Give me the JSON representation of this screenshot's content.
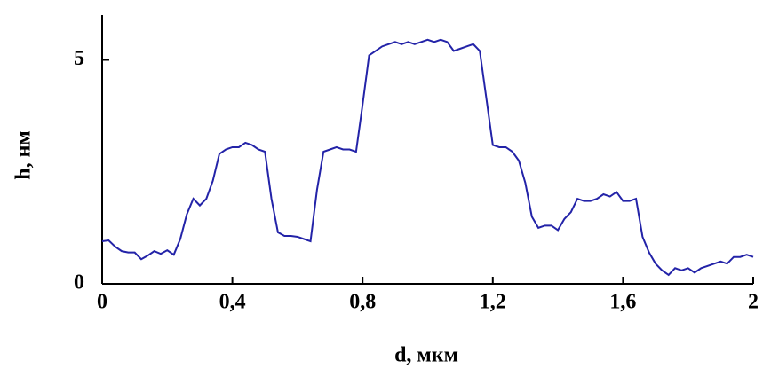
{
  "chart_data": {
    "type": "line",
    "xlabel": "d, мкм",
    "ylabel": "h, нм",
    "xlim": [
      0,
      2
    ],
    "ylim": [
      0,
      6
    ],
    "xticks": [
      0,
      {
        "value": 0.4,
        "label": "0,4"
      },
      {
        "value": 0.8,
        "label": "0,8"
      },
      {
        "value": 1.2,
        "label": "1,2"
      },
      {
        "value": 1.6,
        "label": "1,6"
      },
      2
    ],
    "yticks": [
      0,
      5
    ],
    "series": [
      {
        "color": "#2323a8",
        "x": [
          0,
          0.02,
          0.04,
          0.06,
          0.08,
          0.1,
          0.12,
          0.14,
          0.16,
          0.18,
          0.2,
          0.22,
          0.24,
          0.26,
          0.28,
          0.3,
          0.32,
          0.34,
          0.36,
          0.38,
          0.4,
          0.42,
          0.44,
          0.46,
          0.48,
          0.5,
          0.52,
          0.54,
          0.56,
          0.58,
          0.6,
          0.62,
          0.64,
          0.66,
          0.68,
          0.7,
          0.72,
          0.74,
          0.76,
          0.78,
          0.8,
          0.82,
          0.84,
          0.86,
          0.88,
          0.9,
          0.92,
          0.94,
          0.96,
          0.98,
          1.0,
          1.02,
          1.04,
          1.06,
          1.08,
          1.1,
          1.12,
          1.14,
          1.16,
          1.18,
          1.2,
          1.22,
          1.24,
          1.26,
          1.28,
          1.3,
          1.32,
          1.34,
          1.36,
          1.38,
          1.4,
          1.42,
          1.44,
          1.46,
          1.48,
          1.5,
          1.52,
          1.54,
          1.56,
          1.58,
          1.6,
          1.62,
          1.64,
          1.66,
          1.68,
          1.7,
          1.72,
          1.74,
          1.76,
          1.78,
          1.8,
          1.82,
          1.84,
          1.86,
          1.88,
          1.9,
          1.92,
          1.94,
          1.96,
          1.98,
          2.0
        ],
        "values": [
          0.95,
          0.97,
          0.83,
          0.73,
          0.7,
          0.7,
          0.55,
          0.63,
          0.73,
          0.67,
          0.75,
          0.65,
          1.0,
          1.55,
          1.9,
          1.75,
          1.9,
          2.3,
          2.9,
          3.0,
          3.05,
          3.05,
          3.15,
          3.1,
          3.0,
          2.95,
          1.9,
          1.15,
          1.07,
          1.07,
          1.05,
          1.0,
          0.95,
          2.1,
          2.95,
          3.0,
          3.05,
          3.0,
          3.0,
          2.95,
          4.0,
          5.1,
          5.2,
          5.3,
          5.35,
          5.4,
          5.35,
          5.4,
          5.35,
          5.4,
          5.45,
          5.4,
          5.45,
          5.4,
          5.2,
          5.25,
          5.3,
          5.35,
          5.2,
          4.15,
          3.1,
          3.05,
          3.05,
          2.95,
          2.75,
          2.25,
          1.5,
          1.25,
          1.3,
          1.3,
          1.2,
          1.45,
          1.6,
          1.9,
          1.85,
          1.85,
          1.9,
          2.0,
          1.95,
          2.05,
          1.85,
          1.85,
          1.9,
          1.05,
          0.7,
          0.45,
          0.3,
          0.2,
          0.35,
          0.3,
          0.35,
          0.25,
          0.35,
          0.4,
          0.45,
          0.5,
          0.45,
          0.6,
          0.6,
          0.65,
          0.6
        ]
      }
    ]
  }
}
